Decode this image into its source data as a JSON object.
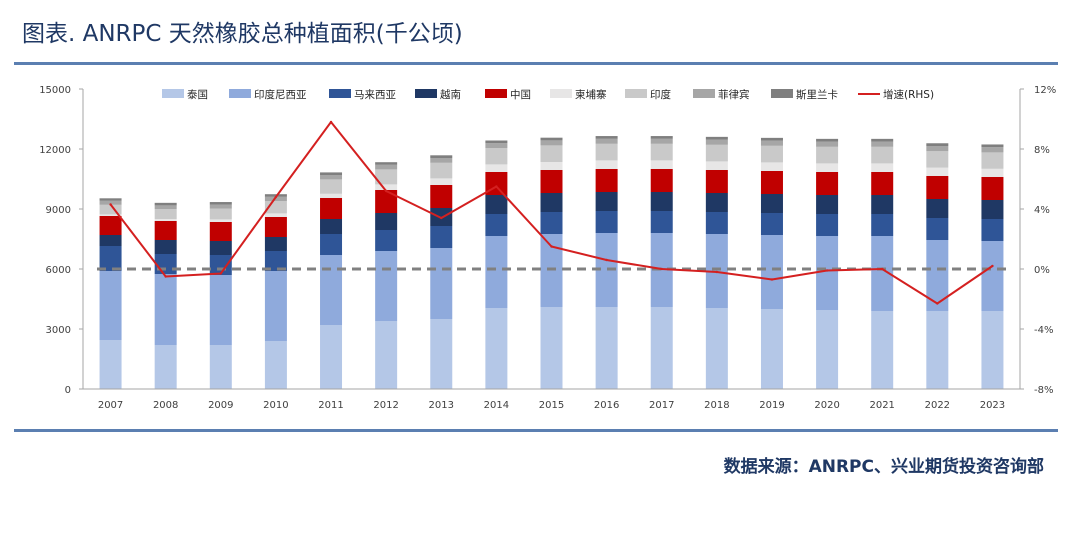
{
  "page": {
    "title": "图表. ANRPC 天然橡胶总种植面积(千公顷)",
    "source": "数据来源：ANRPC、兴业期货投资咨询部"
  },
  "chart_data": {
    "type": "bar",
    "stacked": true,
    "title": "",
    "xlabel": "",
    "ylabel": "",
    "categories": [
      "2007",
      "2008",
      "2009",
      "2010",
      "2011",
      "2012",
      "2013",
      "2014",
      "2015",
      "2016",
      "2017",
      "2018",
      "2019",
      "2020",
      "2021",
      "2022",
      "2023"
    ],
    "ylim": [
      0,
      15000
    ],
    "yticks": [
      0,
      3000,
      6000,
      9000,
      12000,
      15000
    ],
    "y2lim": [
      -8,
      12
    ],
    "y2ticks": [
      -8,
      -4,
      0,
      4,
      8,
      12
    ],
    "y2tick_labels": [
      "-8%",
      "-4%",
      "0%",
      "4%",
      "8%",
      "12%"
    ],
    "grid": false,
    "legend_position": "top",
    "series": [
      {
        "name": "泰国",
        "color": "#b4c7e7",
        "values": [
          2450,
          2200,
          2200,
          2400,
          3200,
          3400,
          3500,
          4050,
          4100,
          4100,
          4100,
          4050,
          4000,
          3950,
          3900,
          3900,
          3900
        ]
      },
      {
        "name": "印度尼西亚",
        "color": "#8faadc",
        "values": [
          3450,
          3550,
          3500,
          3500,
          3500,
          3500,
          3550,
          3600,
          3650,
          3700,
          3700,
          3700,
          3700,
          3700,
          3750,
          3550,
          3500
        ]
      },
      {
        "name": "马来西亚",
        "color": "#2f5597",
        "values": [
          1250,
          1000,
          1000,
          1000,
          1050,
          1050,
          1100,
          1100,
          1100,
          1100,
          1100,
          1100,
          1100,
          1100,
          1100,
          1100,
          1100
        ]
      },
      {
        "name": "越南",
        "color": "#1f3864",
        "values": [
          550,
          700,
          700,
          700,
          750,
          850,
          900,
          950,
          950,
          950,
          950,
          950,
          950,
          950,
          950,
          950,
          950
        ]
      },
      {
        "name": "中国",
        "color": "#c00000",
        "values": [
          950,
          950,
          950,
          1000,
          1050,
          1150,
          1150,
          1150,
          1150,
          1150,
          1150,
          1150,
          1150,
          1150,
          1150,
          1150,
          1150
        ]
      },
      {
        "name": "柬埔寨",
        "color": "#e7e6e6",
        "values": [
          80,
          100,
          130,
          180,
          210,
          280,
          330,
          380,
          400,
          430,
          430,
          430,
          430,
          430,
          430,
          420,
          410
        ]
      },
      {
        "name": "印度",
        "color": "#c9c9c9",
        "values": [
          480,
          500,
          540,
          620,
          720,
          750,
          780,
          820,
          830,
          830,
          830,
          830,
          830,
          830,
          830,
          820,
          820
        ]
      },
      {
        "name": "菲律宾",
        "color": "#a6a6a6",
        "values": [
          200,
          180,
          200,
          210,
          220,
          230,
          240,
          240,
          250,
          250,
          250,
          260,
          260,
          260,
          260,
          260,
          260
        ]
      },
      {
        "name": "斯里兰卡",
        "color": "#7f7f7f",
        "values": [
          125,
          128,
          128,
          130,
          130,
          130,
          135,
          135,
          136,
          137,
          137,
          137,
          137,
          137,
          137,
          137,
          137
        ]
      }
    ],
    "line_series": {
      "name": "增速(RHS)",
      "axis": "right",
      "color": "#d42020",
      "values": [
        4.3,
        -0.5,
        -0.3,
        4.8,
        9.8,
        5.2,
        3.4,
        5.5,
        1.5,
        0.6,
        0.0,
        -0.2,
        -0.7,
        -0.1,
        0.0,
        -2.3,
        0.2
      ]
    },
    "reference_line": {
      "axis": "right",
      "value": 0,
      "color": "#808080",
      "style": "dashed"
    }
  }
}
